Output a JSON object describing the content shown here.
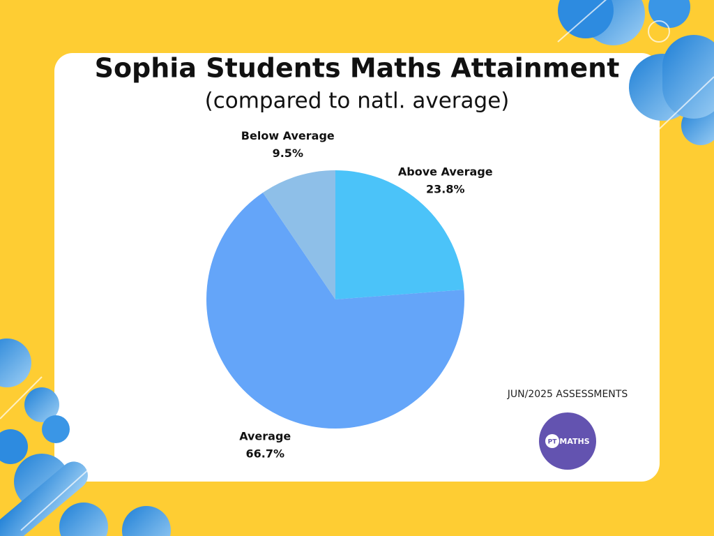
{
  "chart_data": {
    "type": "pie",
    "title": "Sophia Students Maths Attainment",
    "subtitle": "(compared to natl. average)",
    "categories": [
      "Above Average",
      "Average",
      "Below Average"
    ],
    "values": [
      23.8,
      66.7,
      9.5
    ],
    "value_labels": [
      "23.8%",
      "66.7%",
      "9.5%"
    ],
    "colors": [
      "#4bc3f9",
      "#64a5f9",
      "#8ebfe8"
    ],
    "note": "JUN/2025 ASSESSMENTS",
    "logo": {
      "mark": "PT",
      "text": "MATHS"
    }
  }
}
